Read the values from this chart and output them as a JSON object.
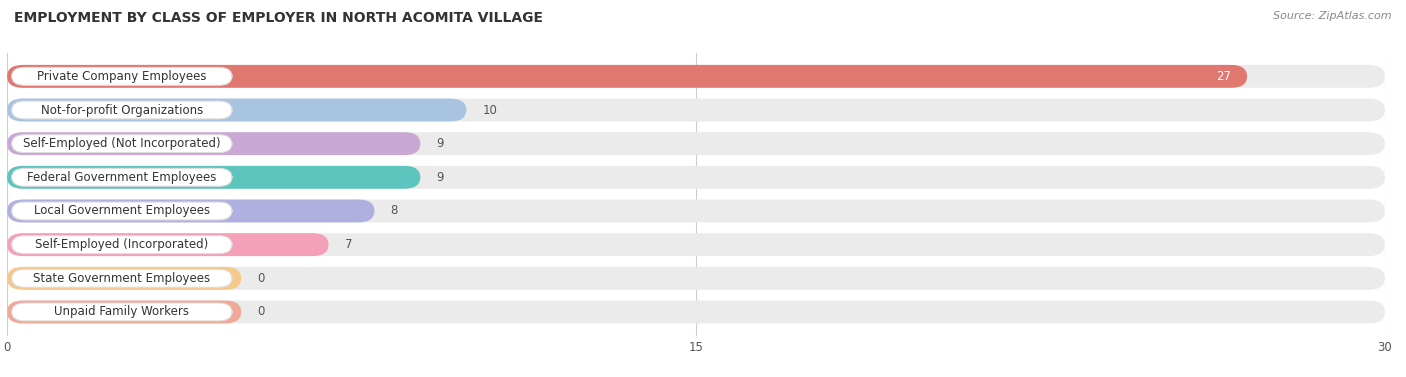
{
  "title": "EMPLOYMENT BY CLASS OF EMPLOYER IN NORTH ACOMITA VILLAGE",
  "source": "Source: ZipAtlas.com",
  "categories": [
    "Private Company Employees",
    "Not-for-profit Organizations",
    "Self-Employed (Not Incorporated)",
    "Federal Government Employees",
    "Local Government Employees",
    "Self-Employed (Incorporated)",
    "State Government Employees",
    "Unpaid Family Workers"
  ],
  "values": [
    27,
    10,
    9,
    9,
    8,
    7,
    0,
    0
  ],
  "bar_colors": [
    "#E07870",
    "#A8C4E0",
    "#C9A8D4",
    "#5EC4BE",
    "#B0B0E0",
    "#F4A0B8",
    "#F5C98A",
    "#F0A898"
  ],
  "xlim": [
    0,
    30
  ],
  "xticks": [
    0,
    15,
    30
  ],
  "title_fontsize": 10,
  "label_fontsize": 8.5,
  "value_fontsize": 8.5,
  "background_color": "#FFFFFF",
  "bar_bg_color": "#EBEBEB",
  "grid_color": "#CCCCCC"
}
